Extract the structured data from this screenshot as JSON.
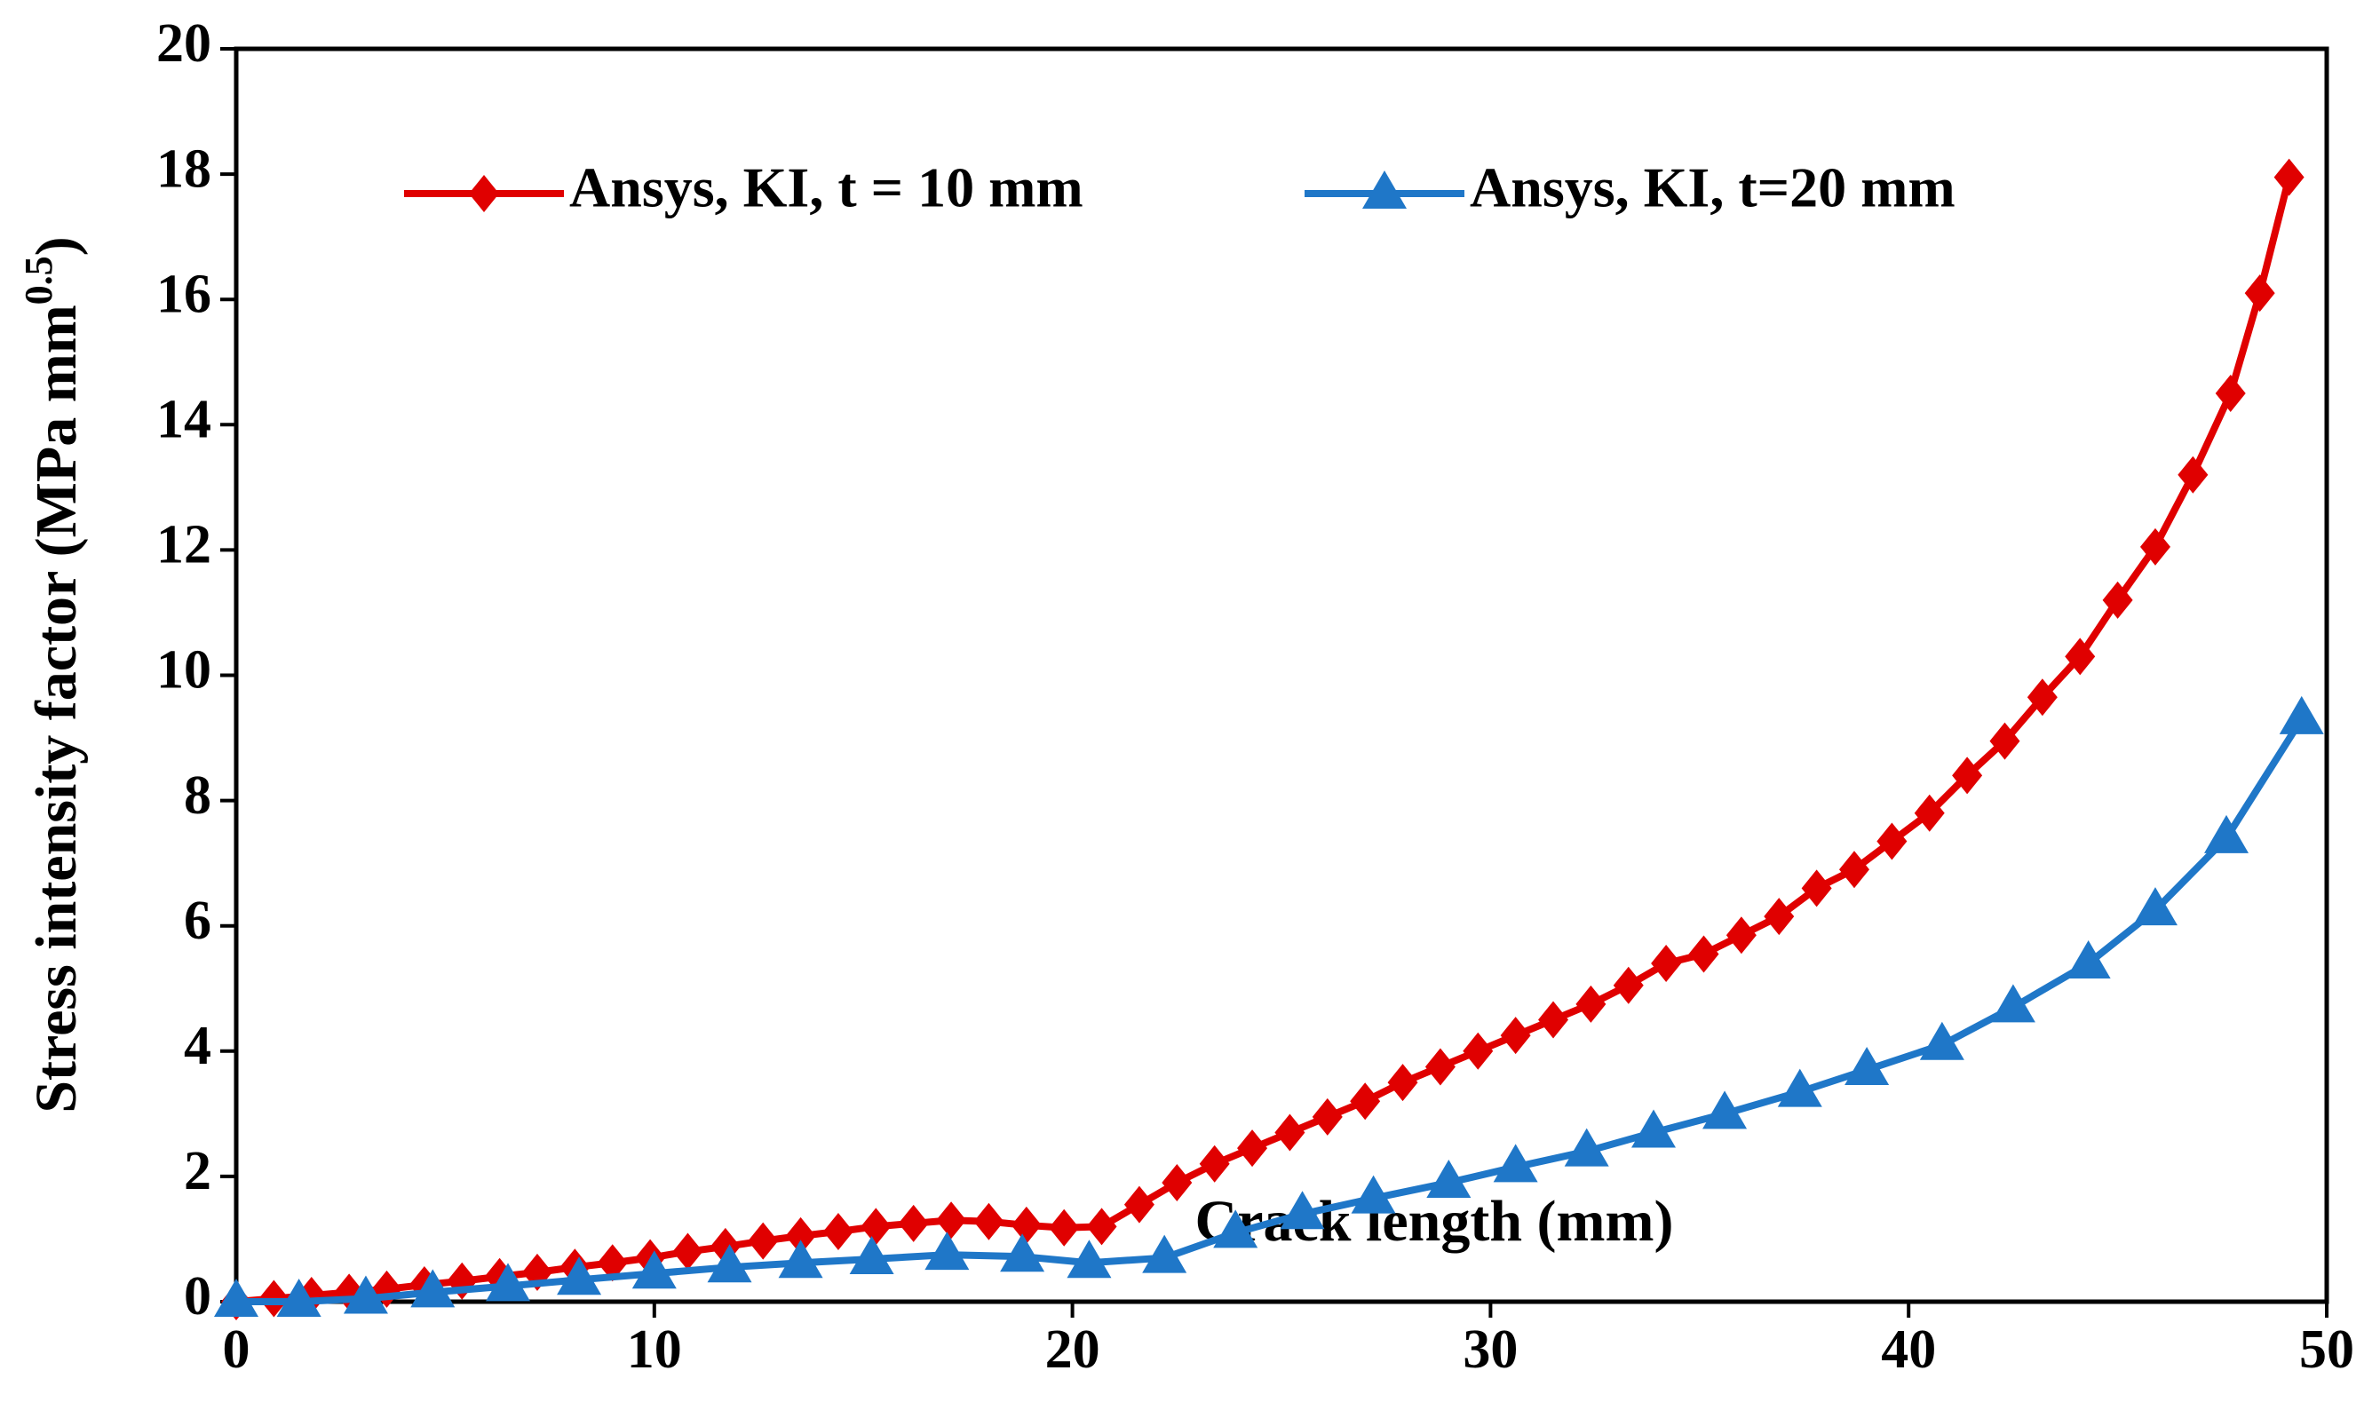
{
  "chart_data": {
    "type": "line",
    "xlabel": "Crack length (mm)",
    "ylabel": [
      "Stress intensity factor (MPa mm",
      "0.5",
      ")"
    ],
    "xlim": [
      0,
      50
    ],
    "xticks": [
      0,
      10,
      20,
      30,
      40,
      50
    ],
    "ylim": [
      0,
      20
    ],
    "yticks": [
      0,
      2,
      4,
      6,
      8,
      10,
      12,
      14,
      16,
      18,
      20
    ],
    "grid": false,
    "legend": "top",
    "series": [
      {
        "name": "Ansys, KI, t = 10 mm",
        "color": "#e00000",
        "marker": "diamond",
        "x": [
          0,
          0.9,
          1.8,
          2.7,
          3.6,
          4.5,
          5.4,
          6.3,
          7.2,
          8.1,
          9.0,
          9.9,
          10.8,
          11.7,
          12.6,
          13.5,
          14.4,
          15.3,
          16.2,
          17.1,
          18.0,
          18.9,
          19.8,
          20.7,
          21.6,
          22.5,
          23.4,
          24.3,
          25.2,
          26.1,
          27.0,
          27.9,
          28.8,
          29.7,
          30.6,
          31.5,
          32.4,
          33.3,
          34.2,
          35.1,
          36.0,
          36.9,
          37.8,
          38.7,
          39.6,
          40.5,
          41.4,
          42.3,
          43.2,
          44.1,
          45.0,
          45.9,
          46.8,
          47.7,
          48.4,
          49.1
        ],
        "values": [
          0,
          0.05,
          0.1,
          0.15,
          0.2,
          0.27,
          0.33,
          0.4,
          0.47,
          0.55,
          0.62,
          0.7,
          0.8,
          0.88,
          0.97,
          1.05,
          1.12,
          1.2,
          1.25,
          1.3,
          1.28,
          1.22,
          1.18,
          1.2,
          1.55,
          1.9,
          2.2,
          2.45,
          2.7,
          2.95,
          3.2,
          3.5,
          3.75,
          4.0,
          4.25,
          4.5,
          4.75,
          5.05,
          5.4,
          5.55,
          5.85,
          6.15,
          6.6,
          6.9,
          7.35,
          7.8,
          8.4,
          8.95,
          9.65,
          10.3,
          11.2,
          12.05,
          13.2,
          14.5,
          16.1,
          17.95
        ]
      },
      {
        "name": "Ansys, KI, t=20 mm",
        "color": "#1f77c8",
        "marker": "triangle",
        "x": [
          0,
          1.5,
          3.1,
          4.7,
          6.5,
          8.2,
          10.0,
          11.8,
          13.5,
          15.2,
          17.0,
          18.8,
          20.4,
          22.2,
          23.9,
          25.5,
          27.2,
          29.0,
          30.6,
          32.3,
          33.9,
          35.6,
          37.4,
          39.0,
          40.8,
          42.5,
          44.3,
          45.9,
          47.6,
          49.4
        ],
        "values": [
          0,
          0,
          0.05,
          0.15,
          0.25,
          0.35,
          0.45,
          0.55,
          0.62,
          0.68,
          0.75,
          0.72,
          0.62,
          0.7,
          1.1,
          1.4,
          1.65,
          1.9,
          2.15,
          2.4,
          2.7,
          3.0,
          3.35,
          3.7,
          4.1,
          4.7,
          5.4,
          6.25,
          7.4,
          9.3
        ]
      }
    ]
  }
}
